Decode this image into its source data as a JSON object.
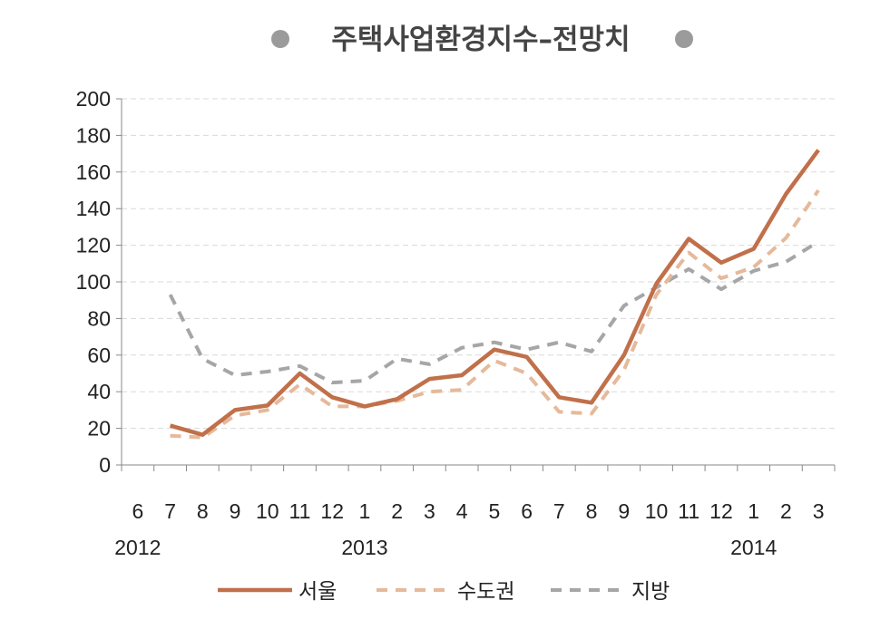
{
  "chart_data": {
    "type": "line",
    "title": "주택사업환경지수–전망치",
    "xlabel": "",
    "ylabel": "",
    "ylim": [
      0,
      200
    ],
    "yticks": [
      0,
      20,
      40,
      60,
      80,
      100,
      120,
      140,
      160,
      180,
      200
    ],
    "grid": "horizontal dashed",
    "legend_position": "bottom",
    "categories": [
      "6",
      "7",
      "8",
      "9",
      "10",
      "11",
      "12",
      "1",
      "2",
      "3",
      "4",
      "5",
      "6",
      "7",
      "8",
      "9",
      "10",
      "11",
      "12",
      "1",
      "2",
      "3"
    ],
    "year_labels": [
      {
        "label": "2012",
        "at_index": 0
      },
      {
        "label": "2013",
        "at_index": 7
      },
      {
        "label": "2014",
        "at_index": 19
      }
    ],
    "series": [
      {
        "name": "서울",
        "color": "#C0704A",
        "style": "solid",
        "values": [
          null,
          21.5,
          16.5,
          30,
          32.5,
          50,
          37,
          32,
          36,
          47,
          49,
          63,
          59,
          37,
          34,
          60,
          99,
          123.5,
          110.5,
          118,
          148,
          172
        ]
      },
      {
        "name": "수도권",
        "color": "#E5B99A",
        "style": "dashed",
        "values": [
          null,
          16,
          15,
          27,
          30,
          44,
          32,
          32,
          35,
          40,
          41,
          57,
          50,
          29,
          28,
          52,
          93,
          116,
          102,
          108,
          124,
          150
        ]
      },
      {
        "name": "지방",
        "color": "#A6A6A6",
        "style": "dashed",
        "values": [
          null,
          93,
          58,
          49,
          51,
          54,
          45,
          46,
          58,
          55,
          64,
          67,
          63,
          67,
          62,
          87,
          97,
          107,
          96,
          106,
          111,
          122
        ]
      }
    ]
  }
}
